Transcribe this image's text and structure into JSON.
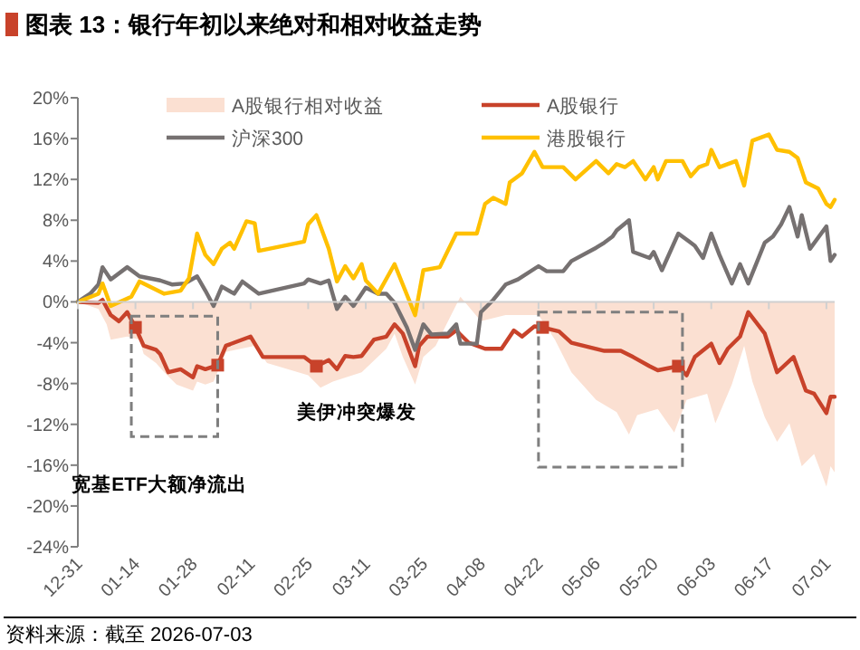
{
  "chart_data": {
    "type": "line",
    "title": "图表 13：银行年初以来绝对和相对收益走势",
    "annotations": [
      "美伊冲突爆发",
      "宽基ETF大额净流出",
      "资料来源：截至 2026-07-03"
    ],
    "xlim": [
      "2025-12-31",
      "2026-07-03"
    ],
    "xticks": [
      {
        "value": "2025-12-31",
        "label": "12-31"
      },
      {
        "value": "2026-01-14",
        "label": "01-14"
      },
      {
        "value": "2026-01-28",
        "label": "01-28"
      },
      {
        "value": "2026-02-11",
        "label": "02-11"
      },
      {
        "value": "2026-02-25",
        "label": "02-25"
      },
      {
        "value": "2026-03-11",
        "label": "03-11"
      },
      {
        "value": "2026-03-25",
        "label": "03-25"
      },
      {
        "value": "2026-04-08",
        "label": "04-08"
      },
      {
        "value": "2026-04-22",
        "label": "04-22"
      },
      {
        "value": "2026-05-06",
        "label": "05-06"
      },
      {
        "value": "2026-05-20",
        "label": "05-20"
      },
      {
        "value": "2026-06-03",
        "label": "06-03"
      },
      {
        "value": "2026-06-17",
        "label": "06-17"
      },
      {
        "value": "2026-07-01",
        "label": "07-01"
      }
    ],
    "ylim": [
      -24,
      20
    ],
    "yticks": [
      {
        "value": -24,
        "label": "-24%"
      },
      {
        "value": -20,
        "label": "-20%"
      },
      {
        "value": -16,
        "label": "-16%"
      },
      {
        "value": -12,
        "label": "-12%"
      },
      {
        "value": -8,
        "label": "-8%"
      },
      {
        "value": -4,
        "label": "-4%"
      },
      {
        "value": 0,
        "label": "0%"
      },
      {
        "value": 4,
        "label": "4%"
      },
      {
        "value": 8,
        "label": "8%"
      },
      {
        "value": 12,
        "label": "12%"
      },
      {
        "value": 16,
        "label": "16%"
      },
      {
        "value": 20,
        "label": "20%"
      }
    ],
    "legend": "top",
    "series": [
      {
        "name": "A股银行相对收益",
        "type": "area",
        "color": "#fbe0d2",
        "x": [
          "2025-12-31",
          "2026-01-05",
          "2026-01-07",
          "2026-01-08",
          "2026-01-12",
          "2026-01-15",
          "2026-01-16",
          "2026-01-19",
          "2026-01-21",
          "2026-01-24",
          "2026-01-28",
          "2026-01-29",
          "2026-01-31",
          "2026-02-02",
          "2026-02-05",
          "2026-02-12",
          "2026-02-15",
          "2026-02-25",
          "2026-02-28",
          "2026-03-03",
          "2026-03-10",
          "2026-03-16",
          "2026-03-18",
          "2026-03-20",
          "2026-03-23",
          "2026-03-25",
          "2026-03-28",
          "2026-04-03",
          "2026-04-08",
          "2026-04-14",
          "2026-04-22",
          "2026-04-26",
          "2026-04-30",
          "2026-05-06",
          "2026-05-11",
          "2026-05-14",
          "2026-05-16",
          "2026-05-21",
          "2026-05-25",
          "2026-05-28",
          "2026-06-02",
          "2026-06-04",
          "2026-06-08",
          "2026-06-11",
          "2026-06-13",
          "2026-06-16",
          "2026-06-19",
          "2026-06-22",
          "2026-06-25",
          "2026-06-28",
          "2026-07-01",
          "2026-07-02",
          "2026-07-03"
        ],
        "values": [
          0,
          -0.7,
          -2.2,
          -3.7,
          -3.4,
          -3.7,
          -5.1,
          -6.0,
          -6.9,
          -8.1,
          -8.7,
          -7.8,
          -8.1,
          -7.8,
          -4.9,
          -4.3,
          -6.0,
          -7.2,
          -8.4,
          -7.8,
          -6.9,
          -4.6,
          -3.1,
          -5.4,
          -8.1,
          -5.4,
          -4.3,
          0.5,
          -1.9,
          -1.3,
          -1.3,
          -3.7,
          -6.9,
          -9.6,
          -10.8,
          -13.0,
          -11.1,
          -10.5,
          -12.8,
          -9.6,
          -9.0,
          -11.9,
          -8.1,
          -4.3,
          -7.8,
          -11.3,
          -13.7,
          -11.9,
          -16.1,
          -14.9,
          -18.1,
          -16.1,
          -16.7
        ]
      },
      {
        "name": "A股银行",
        "type": "line",
        "color": "#c8422a",
        "x": [
          "2025-12-31",
          "2026-01-05",
          "2026-01-06",
          "2026-01-08",
          "2026-01-10",
          "2026-01-12",
          "2026-01-14",
          "2026-01-16",
          "2026-01-19",
          "2026-01-20",
          "2026-01-22",
          "2026-01-25",
          "2026-01-28",
          "2026-01-29",
          "2026-01-31",
          "2026-02-03",
          "2026-02-05",
          "2026-02-07",
          "2026-02-11",
          "2026-02-14",
          "2026-02-24",
          "2026-02-27",
          "2026-03-02",
          "2026-03-04",
          "2026-03-06",
          "2026-03-08",
          "2026-03-10",
          "2026-03-13",
          "2026-03-16",
          "2026-03-18",
          "2026-03-20",
          "2026-03-23",
          "2026-03-24",
          "2026-03-26",
          "2026-03-31",
          "2026-04-02",
          "2026-04-05",
          "2026-04-09",
          "2026-04-13",
          "2026-04-16",
          "2026-04-18",
          "2026-04-21",
          "2026-04-23",
          "2026-04-27",
          "2026-04-30",
          "2026-05-08",
          "2026-05-12",
          "2026-05-15",
          "2026-05-19",
          "2026-05-21",
          "2026-05-26",
          "2026-05-28",
          "2026-05-30",
          "2026-06-03",
          "2026-06-05",
          "2026-06-07",
          "2026-06-10",
          "2026-06-12",
          "2026-06-16",
          "2026-06-19",
          "2026-06-23",
          "2026-06-26",
          "2026-06-28",
          "2026-07-01",
          "2026-07-02",
          "2026-07-03"
        ],
        "values": [
          0,
          -0.1,
          0.2,
          -1.3,
          -1.9,
          -1.0,
          -2.5,
          -4.3,
          -4.7,
          -5.1,
          -6.9,
          -6.6,
          -7.4,
          -6.3,
          -6.6,
          -6.2,
          -4.3,
          -4.0,
          -3.4,
          -5.4,
          -5.4,
          -6.3,
          -5.7,
          -6.6,
          -5.3,
          -5.4,
          -5.3,
          -3.7,
          -3.4,
          -2.2,
          -3.1,
          -6.3,
          -4.3,
          -3.4,
          -3.4,
          -2.8,
          -4.0,
          -4.6,
          -4.6,
          -2.8,
          -3.4,
          -2.4,
          -2.5,
          -2.9,
          -4.0,
          -4.8,
          -4.8,
          -5.4,
          -6.3,
          -6.7,
          -6.3,
          -7.2,
          -5.4,
          -4.1,
          -6.0,
          -4.6,
          -3.4,
          -1.0,
          -3.1,
          -6.9,
          -5.4,
          -8.7,
          -9.0,
          -10.9,
          -9.3,
          -9.3
        ]
      },
      {
        "name": "沪深300",
        "type": "line",
        "color": "#767171",
        "x": [
          "2025-12-31",
          "2026-01-03",
          "2026-01-05",
          "2026-01-06",
          "2026-01-08",
          "2026-01-12",
          "2026-01-15",
          "2026-01-20",
          "2026-01-23",
          "2026-01-26",
          "2026-01-29",
          "2026-01-31",
          "2026-02-02",
          "2026-02-04",
          "2026-02-07",
          "2026-02-09",
          "2026-02-13",
          "2026-02-24",
          "2026-02-25",
          "2026-02-28",
          "2026-03-02",
          "2026-03-04",
          "2026-03-06",
          "2026-03-08",
          "2026-03-11",
          "2026-03-14",
          "2026-03-16",
          "2026-03-18",
          "2026-03-21",
          "2026-03-23",
          "2026-03-25",
          "2026-03-27",
          "2026-03-31",
          "2026-04-02",
          "2026-04-03",
          "2026-04-07",
          "2026-04-08",
          "2026-04-11",
          "2026-04-14",
          "2026-04-17",
          "2026-04-22",
          "2026-04-24",
          "2026-04-28",
          "2026-04-30",
          "2026-05-06",
          "2026-05-08",
          "2026-05-10",
          "2026-05-11",
          "2026-05-14",
          "2026-05-15",
          "2026-05-19",
          "2026-05-20",
          "2026-05-22",
          "2026-05-26",
          "2026-05-30",
          "2026-06-01",
          "2026-06-03",
          "2026-06-05",
          "2026-06-08",
          "2026-06-10",
          "2026-06-12",
          "2026-06-16",
          "2026-06-18",
          "2026-06-20",
          "2026-06-22",
          "2026-06-24",
          "2026-06-25",
          "2026-06-27",
          "2026-07-01",
          "2026-07-02",
          "2026-07-03"
        ],
        "values": [
          0,
          0.8,
          1.7,
          3.4,
          2.2,
          3.4,
          2.5,
          2.1,
          1.7,
          1.8,
          2.5,
          1.1,
          -0.4,
          1.5,
          0.8,
          2.0,
          0.8,
          1.8,
          2.2,
          1.8,
          2.1,
          -0.7,
          0.5,
          -0.4,
          1.4,
          0.8,
          0.8,
          -0.1,
          -2.5,
          -4.7,
          -2.2,
          -3.2,
          -3.1,
          -2.2,
          -4.1,
          -4.1,
          -1.0,
          0.2,
          1.7,
          2.2,
          3.5,
          3.0,
          3.0,
          4.0,
          5.3,
          5.8,
          6.4,
          7.0,
          8.0,
          4.9,
          4.3,
          4.9,
          3.1,
          6.7,
          5.5,
          4.3,
          6.7,
          4.6,
          1.8,
          3.7,
          1.8,
          5.8,
          6.4,
          7.6,
          9.3,
          6.4,
          8.5,
          5.2,
          7.4,
          4.0,
          4.6
        ]
      },
      {
        "name": "港股银行",
        "type": "line",
        "color": "#ffc000",
        "x": [
          "2025-12-31",
          "2026-01-05",
          "2026-01-06",
          "2026-01-08",
          "2026-01-13",
          "2026-01-15",
          "2026-01-21",
          "2026-01-25",
          "2026-01-27",
          "2026-01-29",
          "2026-01-31",
          "2026-02-02",
          "2026-02-04",
          "2026-02-06",
          "2026-02-07",
          "2026-02-10",
          "2026-02-12",
          "2026-02-13",
          "2026-02-24",
          "2026-02-25",
          "2026-02-27",
          "2026-03-02",
          "2026-03-04",
          "2026-03-06",
          "2026-03-08",
          "2026-03-10",
          "2026-03-11",
          "2026-03-14",
          "2026-03-18",
          "2026-03-20",
          "2026-03-23",
          "2026-03-25",
          "2026-03-29",
          "2026-04-02",
          "2026-04-07",
          "2026-04-09",
          "2026-04-11",
          "2026-04-14",
          "2026-04-15",
          "2026-04-18",
          "2026-04-21",
          "2026-04-23",
          "2026-04-28",
          "2026-05-01",
          "2026-05-06",
          "2026-05-09",
          "2026-05-11",
          "2026-05-13",
          "2026-05-15",
          "2026-05-18",
          "2026-05-20",
          "2026-05-21",
          "2026-05-23",
          "2026-05-27",
          "2026-05-29",
          "2026-05-31",
          "2026-06-02",
          "2026-06-03",
          "2026-06-05",
          "2026-06-09",
          "2026-06-11",
          "2026-06-13",
          "2026-06-17",
          "2026-06-19",
          "2026-06-22",
          "2026-06-24",
          "2026-06-26",
          "2026-06-29",
          "2026-07-01",
          "2026-07-02",
          "2026-07-03"
        ],
        "values": [
          0,
          0.8,
          1.8,
          -0.4,
          0.5,
          2.0,
          0.8,
          1.1,
          2.3,
          6.7,
          4.6,
          3.7,
          5.2,
          5.8,
          5.2,
          7.9,
          7.7,
          5.0,
          5.9,
          7.6,
          8.5,
          5.2,
          2.0,
          3.5,
          2.3,
          3.7,
          2.1,
          0.8,
          3.7,
          1.7,
          -1.3,
          3.1,
          3.4,
          6.7,
          6.7,
          9.6,
          10.2,
          9.6,
          11.7,
          12.6,
          14.7,
          13.2,
          13.2,
          12.0,
          13.8,
          12.6,
          13.5,
          13.2,
          13.8,
          12.0,
          13.2,
          12.0,
          13.8,
          13.8,
          12.3,
          13.2,
          13.5,
          14.9,
          13.2,
          13.8,
          11.4,
          15.8,
          16.4,
          14.9,
          14.7,
          14.1,
          11.7,
          11.1,
          9.6,
          9.3,
          10.0
        ]
      },
      {
        "type": "scatter",
        "marker": "square",
        "color": "#c8422a",
        "x": [
          "2026-01-14",
          "2026-02-03",
          "2026-02-27",
          "2026-04-23",
          "2026-05-26"
        ],
        "values": [
          -2.5,
          -6.2,
          -6.3,
          -2.5,
          -6.3
        ]
      }
    ]
  }
}
